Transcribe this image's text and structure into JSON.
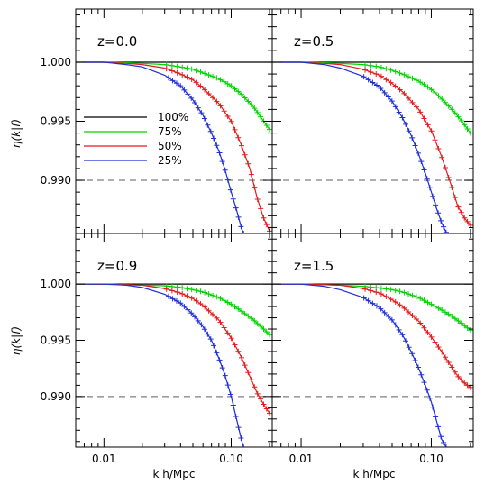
{
  "chart_data": {
    "type": "line",
    "layout": "2x2",
    "shared_xlabel": "k h/Mpc",
    "shared_ylabel": "η(k|f)",
    "xscale": "log",
    "xlim": [
      0.006,
      0.21
    ],
    "ylim": [
      0.9855,
      1.0045
    ],
    "x_tick_labels": [
      "0.01",
      "0.10"
    ],
    "y_tick_labels": [
      "1.000",
      "0.995",
      "0.990"
    ],
    "y_ticks": [
      1.0,
      0.995,
      0.99
    ],
    "reference_lines": [
      {
        "y": 1.0,
        "style": "solid",
        "color": "#000000"
      },
      {
        "y": 0.99,
        "style": "dashed",
        "color": "#7f7f7f"
      }
    ],
    "legend": {
      "placement": "center-left of top-left panel",
      "entries": [
        {
          "label": "100%",
          "color": "#000000"
        },
        {
          "label": "75%",
          "color": "#00d400"
        },
        {
          "label": "50%",
          "color": "#e41a1c"
        },
        {
          "label": "25%",
          "color": "#1f2fd6"
        }
      ]
    },
    "panels": [
      {
        "label": "z=0.0",
        "series": [
          {
            "name": "100%",
            "color": "#000000",
            "markers": false,
            "points": [
              [
                0.006,
                1.0
              ],
              [
                0.21,
                1.0
              ]
            ]
          },
          {
            "name": "75%",
            "color": "#00d400",
            "markers": true,
            "points": [
              [
                0.007,
                1.0
              ],
              [
                0.01,
                1.0
              ],
              [
                0.015,
                0.99995
              ],
              [
                0.02,
                0.9999
              ],
              [
                0.03,
                0.9998
              ],
              [
                0.04,
                0.9996
              ],
              [
                0.05,
                0.9994
              ],
              [
                0.06,
                0.9991
              ],
              [
                0.08,
                0.9986
              ],
              [
                0.1,
                0.998
              ],
              [
                0.12,
                0.9973
              ],
              [
                0.15,
                0.9962
              ],
              [
                0.18,
                0.995
              ],
              [
                0.2,
                0.9943
              ]
            ]
          },
          {
            "name": "50%",
            "color": "#e41a1c",
            "markers": true,
            "points": [
              [
                0.007,
                1.0
              ],
              [
                0.01,
                1.0
              ],
              [
                0.015,
                0.9999
              ],
              [
                0.02,
                0.9998
              ],
              [
                0.03,
                0.9995
              ],
              [
                0.04,
                0.999
              ],
              [
                0.05,
                0.9985
              ],
              [
                0.06,
                0.9978
              ],
              [
                0.08,
                0.9965
              ],
              [
                0.1,
                0.995
              ],
              [
                0.12,
                0.993
              ],
              [
                0.14,
                0.991
              ],
              [
                0.16,
                0.9885
              ],
              [
                0.18,
                0.9868
              ],
              [
                0.2,
                0.9857
              ]
            ]
          },
          {
            "name": "25%",
            "color": "#1f2fd6",
            "markers": true,
            "points": [
              [
                0.007,
                1.0
              ],
              [
                0.01,
                1.0
              ],
              [
                0.015,
                0.9998
              ],
              [
                0.02,
                0.9996
              ],
              [
                0.03,
                0.9989
              ],
              [
                0.04,
                0.998
              ],
              [
                0.05,
                0.9968
              ],
              [
                0.06,
                0.9955
              ],
              [
                0.07,
                0.994
              ],
              [
                0.08,
                0.9925
              ],
              [
                0.09,
                0.9908
              ],
              [
                0.1,
                0.989
              ],
              [
                0.11,
                0.9875
              ],
              [
                0.12,
                0.986
              ],
              [
                0.125,
                0.9855
              ]
            ]
          }
        ]
      },
      {
        "label": "z=0.5",
        "series": [
          {
            "name": "100%",
            "color": "#000000",
            "markers": false,
            "points": [
              [
                0.006,
                1.0
              ],
              [
                0.21,
                1.0
              ]
            ]
          },
          {
            "name": "75%",
            "color": "#00d400",
            "markers": true,
            "points": [
              [
                0.007,
                1.0
              ],
              [
                0.01,
                1.0
              ],
              [
                0.015,
                0.99995
              ],
              [
                0.02,
                0.9999
              ],
              [
                0.03,
                0.9998
              ],
              [
                0.04,
                0.9996
              ],
              [
                0.05,
                0.9993
              ],
              [
                0.06,
                0.999
              ],
              [
                0.08,
                0.9984
              ],
              [
                0.1,
                0.9977
              ],
              [
                0.12,
                0.9969
              ],
              [
                0.15,
                0.9958
              ],
              [
                0.18,
                0.9947
              ],
              [
                0.2,
                0.994
              ]
            ]
          },
          {
            "name": "50%",
            "color": "#e41a1c",
            "markers": true,
            "points": [
              [
                0.007,
                1.0
              ],
              [
                0.01,
                1.0
              ],
              [
                0.015,
                0.9999
              ],
              [
                0.02,
                0.9998
              ],
              [
                0.03,
                0.9994
              ],
              [
                0.04,
                0.9989
              ],
              [
                0.05,
                0.9982
              ],
              [
                0.06,
                0.9975
              ],
              [
                0.08,
                0.996
              ],
              [
                0.1,
                0.9942
              ],
              [
                0.12,
                0.992
              ],
              [
                0.14,
                0.9898
              ],
              [
                0.16,
                0.9878
              ],
              [
                0.18,
                0.9868
              ],
              [
                0.2,
                0.9862
              ]
            ]
          },
          {
            "name": "25%",
            "color": "#1f2fd6",
            "markers": true,
            "points": [
              [
                0.007,
                1.0
              ],
              [
                0.01,
                1.0
              ],
              [
                0.015,
                0.9998
              ],
              [
                0.02,
                0.9995
              ],
              [
                0.03,
                0.9988
              ],
              [
                0.04,
                0.9979
              ],
              [
                0.05,
                0.9967
              ],
              [
                0.06,
                0.9953
              ],
              [
                0.07,
                0.9938
              ],
              [
                0.08,
                0.9922
              ],
              [
                0.09,
                0.9906
              ],
              [
                0.1,
                0.989
              ],
              [
                0.11,
                0.9876
              ],
              [
                0.12,
                0.9864
              ],
              [
                0.13,
                0.9856
              ]
            ]
          }
        ]
      },
      {
        "label": "z=0.9",
        "series": [
          {
            "name": "100%",
            "color": "#000000",
            "markers": false,
            "points": [
              [
                0.006,
                1.0
              ],
              [
                0.21,
                1.0
              ]
            ]
          },
          {
            "name": "75%",
            "color": "#00d400",
            "markers": true,
            "points": [
              [
                0.007,
                1.0
              ],
              [
                0.01,
                1.0
              ],
              [
                0.015,
                0.99995
              ],
              [
                0.02,
                0.9999
              ],
              [
                0.03,
                0.99985
              ],
              [
                0.04,
                0.9997
              ],
              [
                0.05,
                0.9995
              ],
              [
                0.06,
                0.9993
              ],
              [
                0.08,
                0.9988
              ],
              [
                0.1,
                0.9982
              ],
              [
                0.12,
                0.9976
              ],
              [
                0.15,
                0.9968
              ],
              [
                0.18,
                0.996
              ],
              [
                0.2,
                0.9955
              ]
            ]
          },
          {
            "name": "50%",
            "color": "#e41a1c",
            "markers": true,
            "points": [
              [
                0.007,
                1.0
              ],
              [
                0.01,
                1.0
              ],
              [
                0.015,
                0.99995
              ],
              [
                0.02,
                0.9999
              ],
              [
                0.03,
                0.9996
              ],
              [
                0.04,
                0.9992
              ],
              [
                0.05,
                0.9987
              ],
              [
                0.06,
                0.9981
              ],
              [
                0.08,
                0.9968
              ],
              [
                0.1,
                0.9952
              ],
              [
                0.12,
                0.9935
              ],
              [
                0.14,
                0.9918
              ],
              [
                0.16,
                0.9903
              ],
              [
                0.18,
                0.9893
              ],
              [
                0.2,
                0.9885
              ]
            ]
          },
          {
            "name": "25%",
            "color": "#1f2fd6",
            "markers": true,
            "points": [
              [
                0.007,
                1.0
              ],
              [
                0.01,
                1.0
              ],
              [
                0.015,
                0.9999
              ],
              [
                0.02,
                0.9997
              ],
              [
                0.03,
                0.9991
              ],
              [
                0.04,
                0.9983
              ],
              [
                0.05,
                0.9973
              ],
              [
                0.06,
                0.9962
              ],
              [
                0.07,
                0.995
              ],
              [
                0.08,
                0.9934
              ],
              [
                0.09,
                0.9918
              ],
              [
                0.1,
                0.99
              ],
              [
                0.11,
                0.988
              ],
              [
                0.12,
                0.9862
              ],
              [
                0.125,
                0.9855
              ]
            ]
          }
        ]
      },
      {
        "label": "z=1.5",
        "series": [
          {
            "name": "100%",
            "color": "#000000",
            "markers": false,
            "points": [
              [
                0.006,
                1.0
              ],
              [
                0.21,
                1.0
              ]
            ]
          },
          {
            "name": "75%",
            "color": "#00d400",
            "markers": true,
            "points": [
              [
                0.007,
                1.0
              ],
              [
                0.01,
                1.0
              ],
              [
                0.015,
                0.99995
              ],
              [
                0.02,
                0.9999
              ],
              [
                0.03,
                0.9998
              ],
              [
                0.04,
                0.99965
              ],
              [
                0.05,
                0.9995
              ],
              [
                0.06,
                0.9993
              ],
              [
                0.08,
                0.9988
              ],
              [
                0.1,
                0.9982
              ],
              [
                0.12,
                0.9977
              ],
              [
                0.15,
                0.997
              ],
              [
                0.18,
                0.9963
              ],
              [
                0.2,
                0.9959
              ]
            ]
          },
          {
            "name": "50%",
            "color": "#e41a1c",
            "markers": true,
            "points": [
              [
                0.007,
                1.0
              ],
              [
                0.01,
                1.0
              ],
              [
                0.015,
                0.99995
              ],
              [
                0.02,
                0.9999
              ],
              [
                0.03,
                0.9996
              ],
              [
                0.04,
                0.9992
              ],
              [
                0.05,
                0.9986
              ],
              [
                0.06,
                0.998
              ],
              [
                0.08,
                0.9967
              ],
              [
                0.1,
                0.9953
              ],
              [
                0.12,
                0.994
              ],
              [
                0.14,
                0.9928
              ],
              [
                0.16,
                0.9918
              ],
              [
                0.18,
                0.9912
              ],
              [
                0.2,
                0.9908
              ]
            ]
          },
          {
            "name": "25%",
            "color": "#1f2fd6",
            "markers": true,
            "points": [
              [
                0.007,
                1.0
              ],
              [
                0.01,
                1.0
              ],
              [
                0.015,
                0.9998
              ],
              [
                0.02,
                0.9995
              ],
              [
                0.03,
                0.9988
              ],
              [
                0.04,
                0.9979
              ],
              [
                0.05,
                0.9968
              ],
              [
                0.06,
                0.9955
              ],
              [
                0.07,
                0.994
              ],
              [
                0.08,
                0.9925
              ],
              [
                0.09,
                0.991
              ],
              [
                0.1,
                0.9895
              ],
              [
                0.11,
                0.9878
              ],
              [
                0.12,
                0.9862
              ],
              [
                0.13,
                0.9855
              ]
            ]
          }
        ]
      }
    ]
  }
}
